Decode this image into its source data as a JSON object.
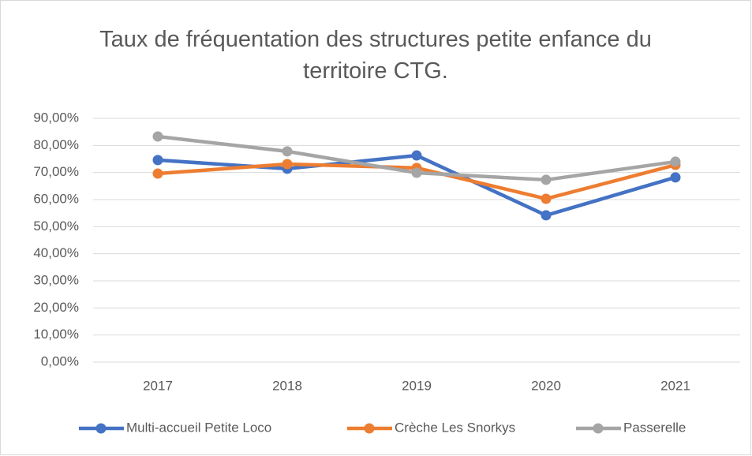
{
  "chart_data": {
    "type": "line",
    "title": "Taux de fréquentation des structures petite enfance du territoire CTG.",
    "categories": [
      "2017",
      "2018",
      "2019",
      "2020",
      "2021"
    ],
    "series": [
      {
        "name": "Multi-accueil Petite Loco",
        "color": "#4472c4",
        "values": [
          74.6,
          71.4,
          76.3,
          54.2,
          68.2
        ]
      },
      {
        "name": "Crèche Les Snorkys",
        "color": "#ed7d31",
        "values": [
          69.6,
          73.1,
          71.7,
          60.3,
          72.8
        ]
      },
      {
        "name": "Passerelle",
        "color": "#a5a5a5",
        "values": [
          83.3,
          77.8,
          69.9,
          67.3,
          74.0
        ]
      }
    ],
    "ylim": [
      0,
      90
    ],
    "yticks": [
      {
        "value": 0,
        "label": "0,00%"
      },
      {
        "value": 10,
        "label": "10,00%"
      },
      {
        "value": 20,
        "label": "20,00%"
      },
      {
        "value": 30,
        "label": "30,00%"
      },
      {
        "value": 40,
        "label": "40,00%"
      },
      {
        "value": 50,
        "label": "50,00%"
      },
      {
        "value": 60,
        "label": "60,00%"
      },
      {
        "value": 70,
        "label": "70,00%"
      },
      {
        "value": 80,
        "label": "80,00%"
      },
      {
        "value": 90,
        "label": "90,00%"
      }
    ],
    "grid": true,
    "legend": "bottom"
  }
}
